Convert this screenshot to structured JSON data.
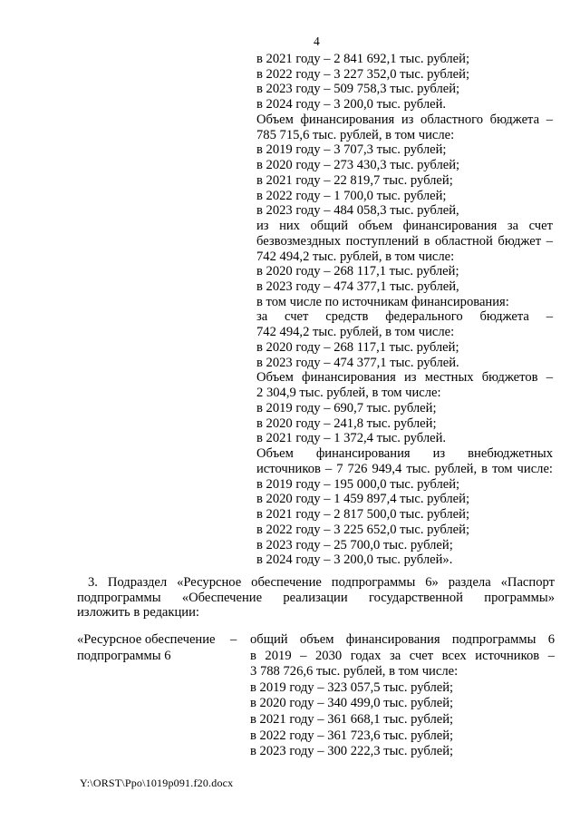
{
  "page": {
    "number": "4",
    "footer_path": "Y:\\ORST\\Ppo\\1019p091.f20.docx"
  },
  "budget_block": {
    "lines": [
      {
        "text": "в 2021 году – 2 841 692,1 тыс. рублей;",
        "justify": false
      },
      {
        "text": "в 2022 году – 3 227 352,0 тыс. рублей;",
        "justify": false
      },
      {
        "text": "в 2023 году – 509 758,3 тыс. рублей;",
        "justify": false
      },
      {
        "text": "в 2024 году – 3 200,0 тыс. рублей.",
        "justify": false
      },
      {
        "text": "Объем финансирования из областного бюджета –",
        "justify": true
      },
      {
        "text": "785 715,6 тыс. рублей, в том числе:",
        "justify": false
      },
      {
        "text": "в 2019 году – 3 707,3 тыс. рублей;",
        "justify": false
      },
      {
        "text": "в 2020 году – 273 430,3 тыс. рублей;",
        "justify": false
      },
      {
        "text": "в 2021 году – 22 819,7 тыс. рублей;",
        "justify": false
      },
      {
        "text": "в 2022 году – 1 700,0 тыс. рублей;",
        "justify": false
      },
      {
        "text": "в 2023 году – 484 058,3 тыс. рублей,",
        "justify": false
      },
      {
        "text": "из них общий объем финансирования за счет",
        "justify": true
      },
      {
        "text": "безвозмездных поступлений в областной бюджет –",
        "justify": true
      },
      {
        "text": "742 494,2 тыс. рублей, в том числе:",
        "justify": false
      },
      {
        "text": "в 2020 году – 268 117,1 тыс. рублей;",
        "justify": false
      },
      {
        "text": "в 2023 году – 474 377,1 тыс. рублей,",
        "justify": false
      },
      {
        "text": "в том числе по источникам финансирования:",
        "justify": false
      },
      {
        "text": "за счет средств федерального бюджета –",
        "justify": true
      },
      {
        "text": "742 494,2 тыс. рублей, в том числе:",
        "justify": false
      },
      {
        "text": "в 2020 году – 268 117,1 тыс. рублей;",
        "justify": false
      },
      {
        "text": "в 2023 году – 474 377,1 тыс. рублей.",
        "justify": false
      },
      {
        "text": "Объем финансирования из местных бюджетов –",
        "justify": true
      },
      {
        "text": "2 304,9 тыс. рублей, в том числе:",
        "justify": false
      },
      {
        "text": "в 2019 году – 690,7 тыс. рублей;",
        "justify": false
      },
      {
        "text": "в 2020 году – 241,8 тыс. рублей;",
        "justify": false
      },
      {
        "text": "в 2021 году – 1 372,4 тыс. рублей.",
        "justify": false
      },
      {
        "text": "Объем финансирования из внебюджетных",
        "justify": true
      },
      {
        "text": "источников – 7 726 949,4 тыс. рублей, в том числе:",
        "justify": true
      },
      {
        "text": "в 2019 году – 195 000,0 тыс. рублей;",
        "justify": false
      },
      {
        "text": "в 2020 году – 1 459 897,4 тыс. рублей;",
        "justify": false
      },
      {
        "text": "в 2021 году – 2 817 500,0 тыс. рублей;",
        "justify": false
      },
      {
        "text": "в 2022 году – 3 225 652,0 тыс. рублей;",
        "justify": false
      },
      {
        "text": "в 2023 году – 25 700,0 тыс. рублей;",
        "justify": false
      },
      {
        "text": "в 2024 году – 3 200,0 тыс. рублей».",
        "justify": false
      }
    ]
  },
  "amendment_paragraph": {
    "lines": [
      {
        "text": "3. Подраздел «Ресурсное обеспечение подпрограммы 6» раздела «Паспорт",
        "justify": true,
        "indent": true
      },
      {
        "text": "подпрограммы «Обеспечение реализации государственной программы»",
        "justify": true
      },
      {
        "text": "изложить в редакции:",
        "justify": false
      }
    ]
  },
  "resource_block": {
    "left_lines": [
      {
        "text": "«Ресурсное обеспечение",
        "justify": false
      },
      {
        "text": "подпрограммы 6",
        "justify": false
      }
    ],
    "dash": "–",
    "right_lines": [
      {
        "text": "общий объем финансирования подпрограммы 6",
        "justify": true
      },
      {
        "text": "в 2019 – 2030 годах за счет всех источников –",
        "justify": true
      },
      {
        "text": "3 788 726,6 тыс. рублей, в том числе:",
        "justify": false
      },
      {
        "text": "в 2019 году – 323 057,5 тыс. рублей;",
        "justify": false
      },
      {
        "text": "в 2020 году – 340 499,0 тыс. рублей;",
        "justify": false
      },
      {
        "text": "в 2021 году – 361 668,1 тыс. рублей;",
        "justify": false
      },
      {
        "text": "в 2022 году – 361 723,6 тыс. рублей;",
        "justify": false
      },
      {
        "text": "в 2023 году – 300 222,3 тыс. рублей;",
        "justify": false
      }
    ]
  }
}
